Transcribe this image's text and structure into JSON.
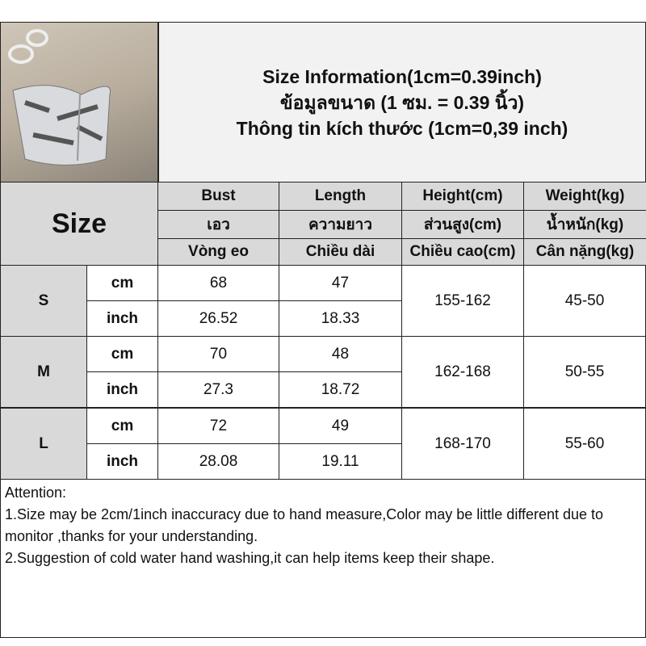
{
  "title": {
    "line1": "Size Information(1cm=0.39inch)",
    "line2": "ข้อมูลขนาด (1 ซม. = 0.39 นิ้ว)",
    "line3": "Thông tin kích thước (1cm=0,39 inch)"
  },
  "size_label": "Size",
  "columns": [
    {
      "en": "Bust",
      "th": "เอว",
      "vi": "Vòng eo"
    },
    {
      "en": "Length",
      "th": "ความยาว",
      "vi": "Chiều dài"
    },
    {
      "en": "Height(cm)",
      "th": "ส่วนสูง(cm)",
      "vi": "Chiều cao(cm)"
    },
    {
      "en": "Weight(kg)",
      "th": "น้ำหนัก(kg)",
      "vi": "Cân nặng(kg)"
    }
  ],
  "rows": [
    {
      "size": "S",
      "cm_label": "cm",
      "inch_label": "inch",
      "bust_cm": "68",
      "bust_in": "26.52",
      "len_cm": "47",
      "len_in": "18.33",
      "height": "155-162",
      "weight": "45-50"
    },
    {
      "size": "M",
      "cm_label": "cm",
      "inch_label": "inch",
      "bust_cm": "70",
      "bust_in": "27.3",
      "len_cm": "48",
      "len_in": "18.72",
      "height": "162-168",
      "weight": "50-55"
    },
    {
      "size": "L",
      "cm_label": "cm",
      "inch_label": "inch",
      "bust_cm": "72",
      "bust_in": "28.08",
      "len_cm": "49",
      "len_in": "19.11",
      "height": "168-170",
      "weight": "55-60"
    }
  ],
  "notes": {
    "heading": "Attention:",
    "n1": "1.Size may be 2cm/1inch inaccuracy due to hand measure,Color may be little different due to monitor ,thanks for your understanding.",
    "n2": "2.Suggestion of cold water hand washing,it can help items keep their shape."
  }
}
